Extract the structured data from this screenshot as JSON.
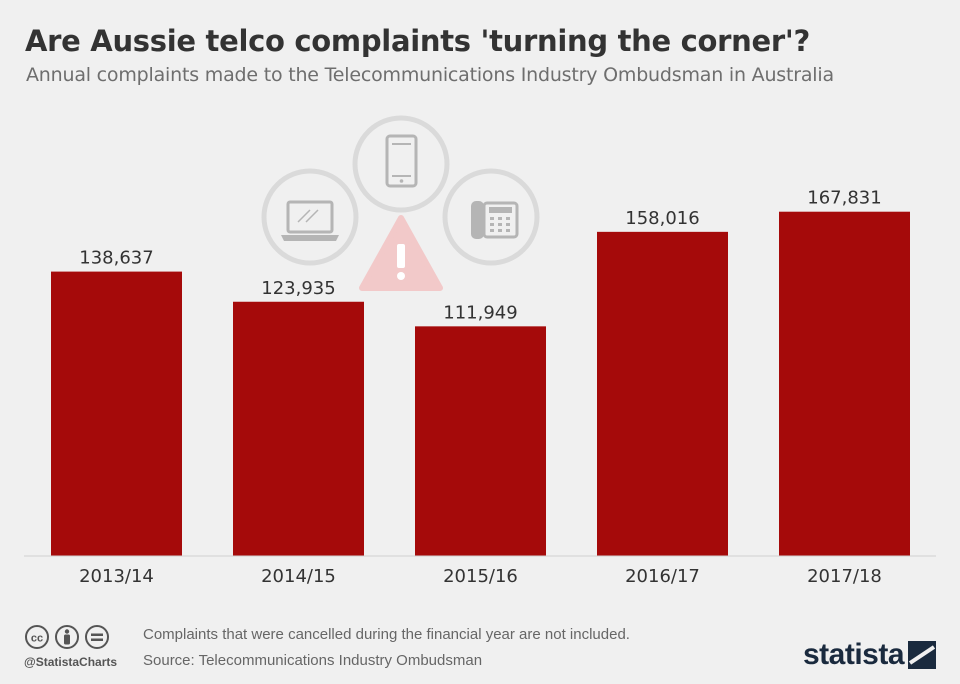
{
  "title": "Are Aussie telco complaints 'turning the corner'?",
  "subtitle": "Annual complaints made to the Telecommunications Industry Ombudsman in Australia",
  "chart_data": {
    "type": "bar",
    "categories": [
      "2013/14",
      "2014/15",
      "2015/16",
      "2016/17",
      "2017/18"
    ],
    "values": [
      138637,
      123935,
      111949,
      158016,
      167831
    ],
    "value_labels": [
      "138,637",
      "123,935",
      "111,949",
      "158,016",
      "167,831"
    ],
    "ylim": [
      0,
      175000
    ],
    "bar_color": "#a50a0a",
    "grid": false,
    "xlabel": "",
    "ylabel": ""
  },
  "footer": {
    "note": "Complaints that were cancelled during the financial year are not included.",
    "source": "Source: Telecommunications Industry Ombudsman",
    "handle": "@StatistaCharts",
    "logo": "statista"
  },
  "icons": [
    "laptop-icon",
    "smartphone-icon",
    "desk-phone-icon",
    "warning-icon",
    "cc-license-icon",
    "attribution-icon",
    "no-derivatives-icon",
    "statista-logo-icon"
  ],
  "colors": {
    "background": "#f0f0f0",
    "bar": "#a50a0a",
    "title": "#333333",
    "icon_circle": "#dadada",
    "icon_glyph": "#b5b5b5",
    "warning": "#f2c9c9",
    "logo": "#1a2a3e"
  }
}
